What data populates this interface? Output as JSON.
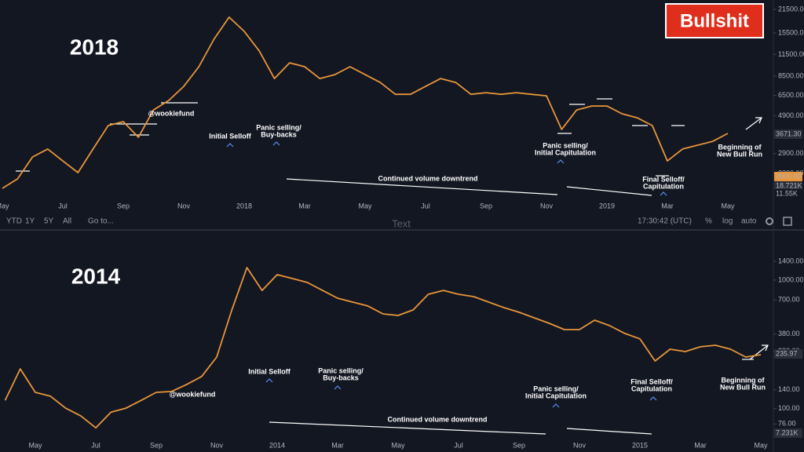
{
  "chart_data": [
    {
      "type": "line",
      "title": "2018",
      "log_scale": true,
      "color": "#e8953a",
      "categories": [
        "May",
        null,
        null,
        null,
        "Jul",
        null,
        null,
        null,
        "Sep",
        null,
        null,
        null,
        "Nov",
        null,
        null,
        null,
        "2018",
        null,
        null,
        null,
        "Mar",
        null,
        null,
        null,
        "May",
        null,
        null,
        null,
        "Jul",
        null,
        null,
        null,
        "Sep",
        null,
        null,
        null,
        "Nov",
        null,
        null,
        null,
        "2019",
        null,
        null,
        null,
        "Mar",
        null,
        null,
        null,
        "May"
      ],
      "values": [
        1790,
        2040,
        2770,
        3090,
        2620,
        2225,
        3090,
        4280,
        4520,
        3640,
        5320,
        6060,
        7380,
        9700,
        14200,
        19300,
        15850,
        12050,
        8230,
        10230,
        9700,
        8230,
        8690,
        9700,
        8690,
        7790,
        6610,
        6610,
        7380,
        8230,
        7790,
        6610,
        6760,
        6610,
        6760,
        6610,
        6470,
        4060,
        5320,
        5620,
        5620,
        5040,
        4770,
        4280,
        2620,
        3090,
        3260,
        3440,
        3840
      ],
      "ylim": [
        1520,
        24500
      ],
      "yticks": [
        {
          "value": 21500,
          "label": "21500.00"
        },
        {
          "value": 15500,
          "label": "15500.00"
        },
        {
          "value": 11500,
          "label": "11500.00"
        },
        {
          "value": 8500,
          "label": "8500.00"
        },
        {
          "value": 6500,
          "label": "6500.00"
        },
        {
          "value": 4900,
          "label": "4900.00"
        },
        {
          "value": 2900,
          "label": "2900.00"
        },
        {
          "value": 2200,
          "label": "2200.00"
        }
      ],
      "price_tags": [
        "3671.30",
        "2000.00",
        "18.721K",
        "11.55K"
      ],
      "annotations": [
        {
          "lines": [
            "@wookiefund"
          ]
        },
        {
          "lines": [
            "Initial Selloff"
          ]
        },
        {
          "lines": [
            "Panic selling/",
            "Buy-backs"
          ]
        },
        {
          "lines": [
            "Continued volume downtrend"
          ]
        },
        {
          "lines": [
            "Panic selling/",
            "Initial Capitulation"
          ]
        },
        {
          "lines": [
            "Final Selloff/",
            "Capitulation"
          ]
        },
        {
          "lines": [
            "Beginning of",
            "New Bull Run"
          ]
        }
      ]
    },
    {
      "type": "line",
      "title": "2014",
      "log_scale": true,
      "color": "#e8953a",
      "categories": [
        null,
        null,
        "May",
        null,
        null,
        null,
        "Jul",
        null,
        null,
        null,
        "Sep",
        null,
        null,
        null,
        "Nov",
        null,
        null,
        null,
        "2014",
        null,
        null,
        null,
        "Mar",
        null,
        null,
        null,
        "May",
        null,
        null,
        null,
        "Jul",
        null,
        null,
        null,
        "Sep",
        null,
        null,
        null,
        "Nov",
        null,
        null,
        null,
        "2015",
        null,
        null,
        null,
        "Mar",
        null,
        null,
        null,
        "May"
      ],
      "values": [
        116,
        204,
        134,
        125,
        101,
        88,
        71,
        94,
        101,
        116,
        134,
        136,
        154,
        178,
        252,
        586,
        1250,
        831,
        1102,
        1028,
        958,
        831,
        723,
        674,
        629,
        546,
        531,
        586,
        776,
        831,
        776,
        744,
        674,
        611,
        562,
        509,
        461,
        412,
        412,
        488,
        442,
        385,
        349,
        235,
        290,
        278,
        303,
        311,
        290,
        252,
        263
      ],
      "ylim": [
        61,
        2320
      ],
      "yticks": [
        {
          "value": 1400,
          "label": "1400.00"
        },
        {
          "value": 1000,
          "label": "1000.00"
        },
        {
          "value": 700,
          "label": "700.00"
        },
        {
          "value": 380,
          "label": "380.00"
        },
        {
          "value": 280,
          "label": "280.00"
        },
        {
          "value": 140,
          "label": "140.00"
        },
        {
          "value": 100,
          "label": "100.00"
        },
        {
          "value": 76,
          "label": "76.00"
        }
      ],
      "price_tags": [
        "235.97",
        "7.231K"
      ],
      "annotations": [
        {
          "lines": [
            "@wookiefund"
          ]
        },
        {
          "lines": [
            "Initial Selloff"
          ]
        },
        {
          "lines": [
            "Panic selling/",
            "Buy-backs"
          ]
        },
        {
          "lines": [
            "Continued volume downtrend"
          ]
        },
        {
          "lines": [
            "Panic selling/",
            "Initial Capitulation"
          ]
        },
        {
          "lines": [
            "Final Selloff/",
            "Capitulation"
          ]
        },
        {
          "lines": [
            "Beginning of",
            "New Bull Run"
          ]
        }
      ]
    }
  ],
  "badge": "Bullshit",
  "toolbar": {
    "ranges": [
      "YTD",
      "1Y",
      "5Y",
      "All"
    ],
    "goto": "Go to...",
    "overlay": "Text",
    "time": "17:30:42 (UTC)",
    "options": [
      "%",
      "log",
      "auto"
    ]
  }
}
